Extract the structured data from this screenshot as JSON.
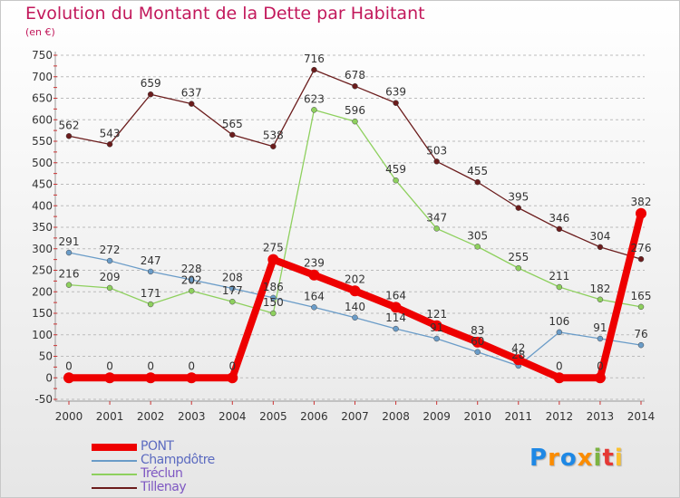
{
  "title": "Evolution du Montant de la Dette par Habitant",
  "unit": "(en €)",
  "logo": {
    "text": "Proxiti",
    "colors": [
      "#1e88e5",
      "#fb8c00",
      "#1e88e5",
      "#fb8c00",
      "#7cb342",
      "#e53935",
      "#fbc02d"
    ]
  },
  "colors": {
    "title": "#c2185b",
    "axis_text": "#333333",
    "grid": "#bbbbbb"
  },
  "chart_data": {
    "type": "line",
    "x": [
      2000,
      2001,
      2002,
      2003,
      2004,
      2005,
      2006,
      2007,
      2008,
      2009,
      2010,
      2011,
      2012,
      2013,
      2014
    ],
    "ylim": [
      -50,
      750
    ],
    "yticks": [
      -50,
      0,
      50,
      100,
      150,
      200,
      250,
      300,
      350,
      400,
      450,
      500,
      550,
      600,
      650,
      700,
      750
    ],
    "grid": "horizontal dashed",
    "legend_position": "bottom-left",
    "series": [
      {
        "name": "Tillenay",
        "color": "#6b1c1c",
        "legend_color": "#7e57c2",
        "width": 1.3,
        "marker": 3,
        "values": [
          562,
          543,
          659,
          637,
          565,
          538,
          716,
          678,
          639,
          503,
          455,
          395,
          346,
          304,
          276
        ]
      },
      {
        "name": "Tréclun",
        "color": "#8ed05e",
        "legend_color": "#7e57c2",
        "width": 1.3,
        "marker": 3,
        "values": [
          216,
          209,
          171,
          202,
          177,
          150,
          623,
          596,
          459,
          347,
          305,
          255,
          211,
          182,
          165
        ]
      },
      {
        "name": "Champdôtre",
        "color": "#6a9cc8",
        "legend_color": "#5c6bc0",
        "width": 1.3,
        "marker": 3,
        "values": [
          291,
          272,
          247,
          228,
          208,
          186,
          164,
          140,
          114,
          91,
          60,
          28,
          106,
          91,
          76
        ]
      },
      {
        "name": "PONT",
        "color": "#ee0000",
        "legend_color": "#5c6bc0",
        "width": 8,
        "marker": 6,
        "values": [
          0,
          0,
          0,
          0,
          0,
          275,
          239,
          202,
          164,
          121,
          83,
          42,
          0,
          0,
          382
        ]
      }
    ],
    "legend_order": [
      "PONT",
      "Champdôtre",
      "Tréclun",
      "Tillenay"
    ]
  }
}
